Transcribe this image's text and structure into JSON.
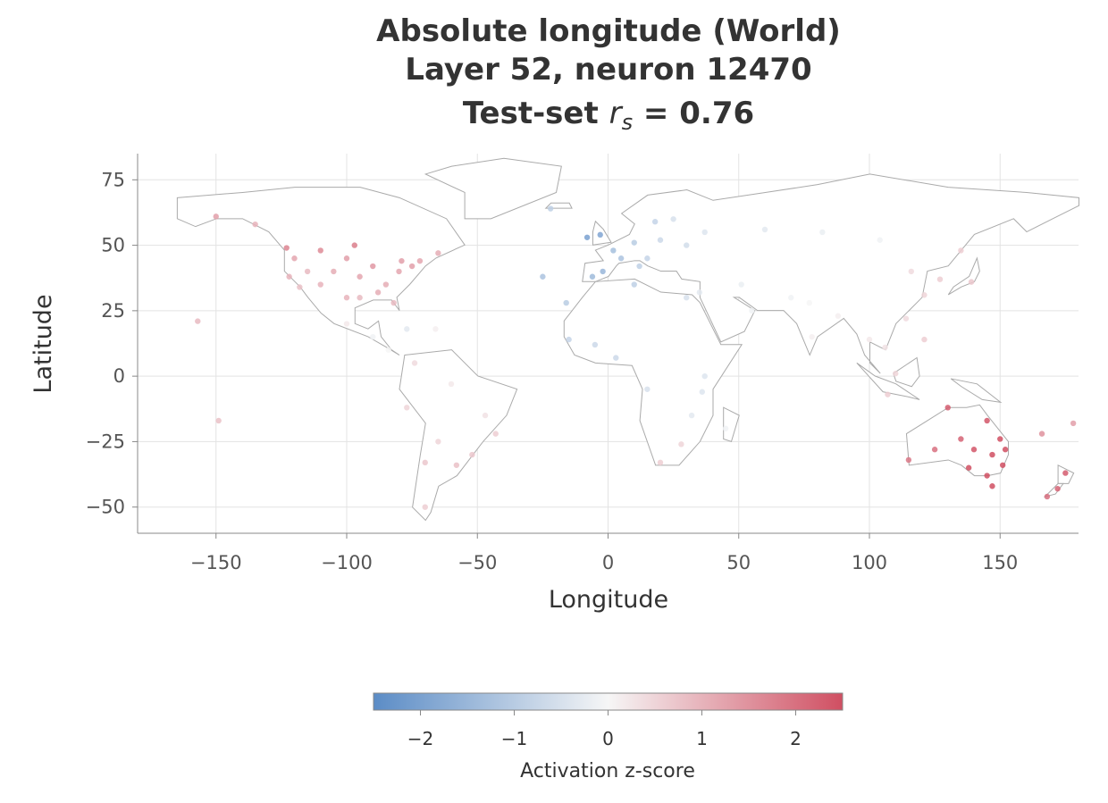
{
  "chart_data": {
    "type": "scatter",
    "title": [
      "Absolute longitude (World)",
      "Layer 52, neuron 12470"
    ],
    "title_line3": {
      "prefix": "Test-set",
      "symbol": "r",
      "subscript": "s",
      "suffix": "= 0.76"
    },
    "xlabel": "Longitude",
    "ylabel": "Latitude",
    "xlim": [
      -180,
      180
    ],
    "ylim": [
      -60,
      85
    ],
    "xticks": [
      {
        "value": -150,
        "label": "−150"
      },
      {
        "value": -100,
        "label": "−100"
      },
      {
        "value": -50,
        "label": "−50"
      },
      0,
      50,
      100,
      150
    ],
    "yticks": [
      {
        "value": -50,
        "label": "−50"
      },
      {
        "value": -25,
        "label": "−25"
      },
      0,
      25,
      50,
      75
    ],
    "grid": true,
    "x": [
      -120,
      -115,
      -110,
      -105,
      -100,
      -95,
      -90,
      -85,
      -80,
      -75,
      -100,
      -95,
      -118,
      -122,
      -88,
      -72,
      -82,
      -110,
      -97,
      -123,
      -79,
      -65,
      -150,
      -135,
      -100,
      -90,
      -84,
      -77,
      -66,
      -74,
      -60,
      -47,
      -43,
      -58,
      -70,
      -65,
      -77,
      -70,
      -52,
      -8,
      -3,
      -2,
      2,
      10,
      15,
      20,
      25,
      12,
      -6,
      5,
      18,
      30,
      37,
      -22,
      -16,
      -25,
      -15,
      -5,
      3,
      10,
      30,
      37,
      32,
      28,
      20,
      15,
      45,
      36,
      35,
      51,
      55,
      70,
      77,
      78,
      88,
      100,
      106,
      114,
      121,
      116,
      127,
      139,
      121,
      107,
      110,
      104,
      82,
      60,
      135,
      115,
      130,
      145,
      150,
      151,
      145,
      138,
      140,
      147,
      152,
      135,
      147,
      125,
      175,
      172,
      168,
      178,
      166,
      -157,
      -149
    ],
    "y": [
      45,
      40,
      35,
      40,
      45,
      38,
      42,
      35,
      40,
      42,
      30,
      30,
      34,
      38,
      32,
      44,
      28,
      48,
      50,
      49,
      44,
      47,
      61,
      58,
      20,
      15,
      10,
      18,
      18,
      5,
      -3,
      -15,
      -22,
      -34,
      -33,
      -25,
      -12,
      -50,
      -30,
      53,
      54,
      40,
      48,
      51,
      45,
      52,
      60,
      42,
      38,
      45,
      59,
      50,
      55,
      64,
      28,
      38,
      14,
      12,
      7,
      35,
      30,
      0,
      -15,
      -26,
      -33,
      -5,
      -20,
      -6,
      32,
      35,
      25,
      30,
      28,
      15,
      23,
      14,
      11,
      22,
      31,
      40,
      37,
      36,
      14,
      -7,
      1,
      52,
      55,
      56,
      48,
      -32,
      -12,
      -17,
      -24,
      -34,
      -38,
      -35,
      -28,
      -30,
      -28,
      -24,
      -42,
      -28,
      -37,
      -43,
      -46,
      -18,
      -22,
      21,
      -17
    ],
    "values": [
      1.2,
      0.9,
      1.0,
      1.1,
      1.3,
      1.2,
      1.4,
      1.1,
      1.2,
      1.3,
      1.0,
      0.9,
      0.8,
      1.0,
      1.1,
      1.2,
      0.9,
      1.6,
      1.8,
      1.7,
      1.3,
      1.1,
      1.3,
      1.0,
      0.2,
      -0.1,
      0.0,
      -0.3,
      0.1,
      0.4,
      0.2,
      0.3,
      0.6,
      0.8,
      0.7,
      0.5,
      0.5,
      0.6,
      0.7,
      -2.0,
      -1.9,
      -1.5,
      -1.3,
      -1.0,
      -0.8,
      -0.7,
      -0.5,
      -0.9,
      -1.4,
      -1.2,
      -0.8,
      -0.6,
      -0.4,
      -0.9,
      -1.0,
      -1.2,
      -0.8,
      -0.7,
      -0.7,
      -0.9,
      -0.5,
      -0.4,
      -0.3,
      0.5,
      0.6,
      -0.5,
      -0.1,
      -0.4,
      -0.3,
      -0.2,
      -0.1,
      -0.1,
      0.0,
      0.1,
      0.1,
      0.2,
      0.3,
      0.4,
      0.5,
      0.4,
      0.6,
      0.7,
      0.6,
      0.6,
      0.5,
      -0.1,
      -0.2,
      -0.3,
      0.6,
      1.9,
      2.3,
      2.4,
      2.6,
      2.7,
      2.6,
      2.5,
      2.4,
      2.6,
      2.7,
      2.2,
      2.5,
      2.0,
      2.3,
      2.2,
      2.0,
      1.3,
      1.5,
      0.9,
      0.8
    ],
    "colormap": [
      "#5b8cc6",
      "#f6f6f6",
      "#d04f62"
    ],
    "colorbar": {
      "label": "Activation z-score",
      "lim": [
        -2.5,
        2.5
      ],
      "ticks": [
        {
          "value": -2,
          "label": "−2"
        },
        {
          "value": -1,
          "label": "−1"
        },
        0,
        1,
        2
      ]
    }
  }
}
